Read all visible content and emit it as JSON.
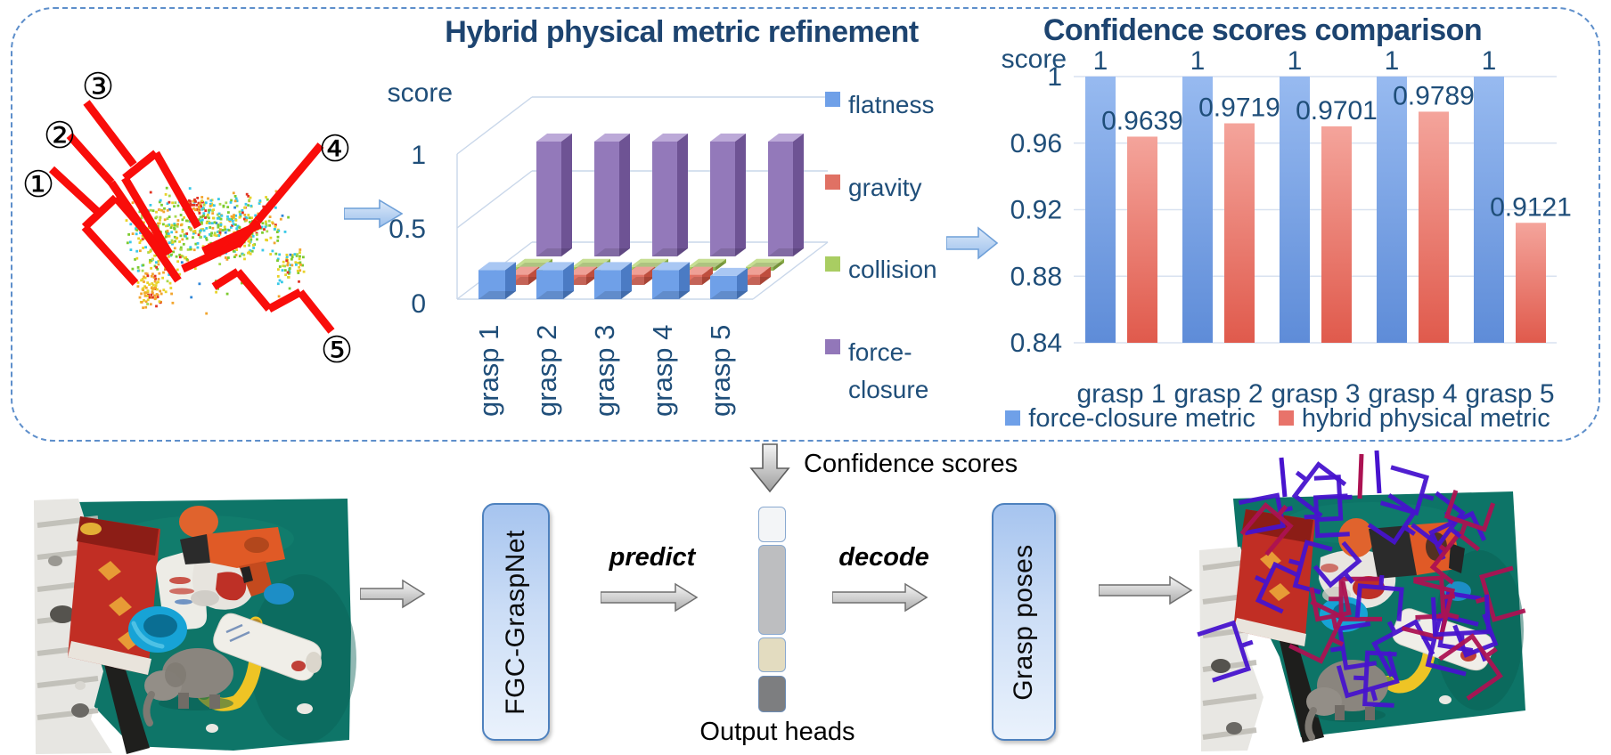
{
  "top_panel": {
    "grasp_candidates": {
      "labels": [
        "①",
        "②",
        "③",
        "④",
        "⑤"
      ]
    },
    "refinement": {
      "title": "Hybrid physical metric refinement",
      "axis_label": "score"
    },
    "comparison": {
      "title": "Confidence scores comparison",
      "axis_label": "score"
    }
  },
  "pipeline": {
    "confidence_scores_label": "Confidence scores",
    "network_box_label": "FGC-GraspNet",
    "predict_label": "predict",
    "decode_label": "decode",
    "output_heads_label": "Output heads",
    "grasp_poses_label": "Grasp poses"
  },
  "chart_data": [
    {
      "type": "bar",
      "variant": "3d",
      "title": "Hybrid physical metric refinement",
      "xlabel": "",
      "ylabel": "score",
      "yticks": [
        0,
        0.5,
        1
      ],
      "ytick_labels": [
        "0",
        "0.5",
        "1"
      ],
      "categories": [
        "grasp 1",
        "grasp 2",
        "grasp 3",
        "grasp 4",
        "grasp 5"
      ],
      "series": [
        {
          "name": "flatness",
          "legend_display": "flatness",
          "color": "#6FA0E8",
          "values": [
            0.2,
            0.2,
            0.2,
            0.2,
            0.16
          ]
        },
        {
          "name": "gravity",
          "legend_display": "gravity",
          "color": "#E07164",
          "values": [
            0.07,
            0.07,
            0.07,
            0.07,
            0.07
          ]
        },
        {
          "name": "collision",
          "legend_display": "collision",
          "color": "#A9CD62",
          "values": [
            0.03,
            0.03,
            0.03,
            0.03,
            0.03
          ]
        },
        {
          "name": "force-closure",
          "legend_display": "force-\nclosure",
          "color": "#9277B9",
          "values": [
            0.97,
            0.97,
            0.97,
            0.97,
            0.97
          ]
        }
      ],
      "legend_position": "right",
      "grid": true
    },
    {
      "type": "bar",
      "title": "Confidence scores comparison",
      "xlabel": "",
      "ylabel": "score",
      "ylim": [
        0.84,
        1
      ],
      "yticks": [
        0.84,
        0.88,
        0.92,
        0.96,
        1
      ],
      "ytick_labels": [
        "0.84",
        "0.88",
        "0.92",
        "0.96",
        "1"
      ],
      "categories": [
        "grasp 1",
        "grasp 2",
        "grasp 3",
        "grasp 4",
        "grasp 5"
      ],
      "series": [
        {
          "name": "force-closure metric",
          "color": "#6FA0E8",
          "values": [
            1,
            1,
            1,
            1,
            1
          ],
          "value_labels": [
            "1",
            "1",
            "1",
            "1",
            "1"
          ]
        },
        {
          "name": "hybrid physical metric",
          "color": "#E8736A",
          "values": [
            0.9639,
            0.9719,
            0.9701,
            0.9789,
            0.9121
          ],
          "value_labels": [
            "0.9639",
            "0.9719",
            "0.9701",
            "0.9789",
            "0.9121"
          ]
        }
      ],
      "legend_position": "bottom",
      "grid": true
    }
  ],
  "colors": {
    "heading_text": "#1D4470",
    "tick_text": "#1F4E79",
    "panel_border": "#5E8FCB",
    "box_border": "#4E81BE",
    "gripper_red": "#F90D0A",
    "grasp_wireframe_purple": "#4713CE",
    "grasp_wireframe_crimson": "#AC1252",
    "table_teal": "#0E7568"
  }
}
